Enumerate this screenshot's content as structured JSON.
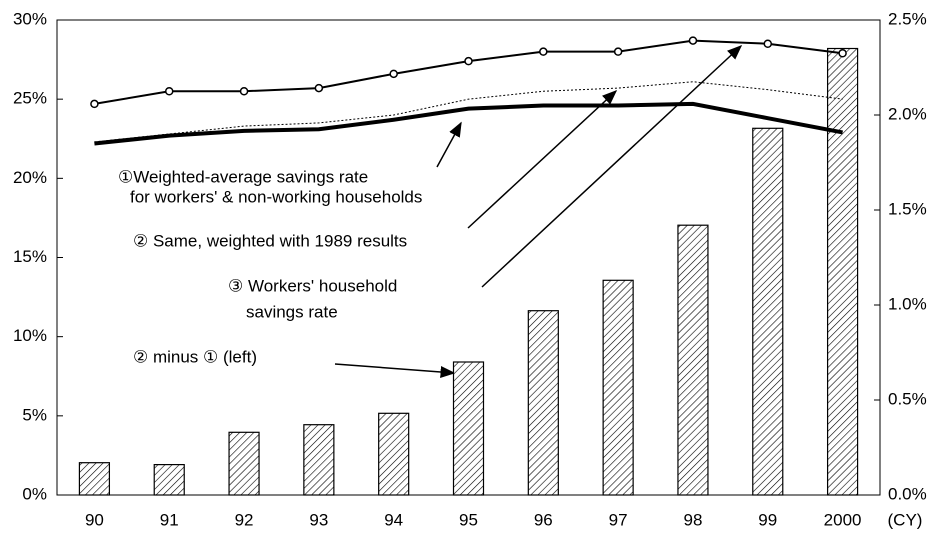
{
  "chart_data": {
    "type": "bar+line",
    "categories": [
      "90",
      "91",
      "92",
      "93",
      "94",
      "95",
      "96",
      "97",
      "98",
      "99",
      "2000"
    ],
    "x_unit_label": "(CY)",
    "ylim": [
      0,
      30
    ],
    "yticks": [
      {
        "value": 0,
        "label": "0%"
      },
      {
        "value": 5,
        "label": "5%"
      },
      {
        "value": 10,
        "label": "10%"
      },
      {
        "value": 15,
        "label": "15%"
      },
      {
        "value": 20,
        "label": "20%"
      },
      {
        "value": 25,
        "label": "25%"
      },
      {
        "value": 30,
        "label": "30%"
      }
    ],
    "y2lim": [
      0,
      2.5
    ],
    "y2ticks": [
      {
        "value": 0,
        "label": "0.0%"
      },
      {
        "value": 0.5,
        "label": "0.5%"
      },
      {
        "value": 1,
        "label": "1.0%"
      },
      {
        "value": 1.5,
        "label": "1.5%"
      },
      {
        "value": 2,
        "label": "2.0%"
      },
      {
        "value": 2.5,
        "label": "2.5%"
      }
    ],
    "series": [
      {
        "label": [
          "②  minus ① (left)"
        ],
        "type": "bar",
        "axis": "y2",
        "color": "#000000",
        "pattern": "hatched",
        "values": [
          0.17,
          0.16,
          0.33,
          0.37,
          0.43,
          0.7,
          0.97,
          1.13,
          1.42,
          1.93,
          2.35
        ]
      },
      {
        "label": [
          "①Weighted-average savings rate",
          "for workers' & non-working households"
        ],
        "type": "line",
        "style": "thick",
        "color": "#000000",
        "values": [
          22.2,
          22.7,
          23.0,
          23.1,
          23.7,
          24.4,
          24.6,
          24.6,
          24.7,
          23.8,
          22.9
        ]
      },
      {
        "label": [
          "② Same, weighted with 1989 results"
        ],
        "type": "line",
        "style": "dotted",
        "color": "#000000",
        "values": [
          22.3,
          22.8,
          23.3,
          23.5,
          24.0,
          25.0,
          25.5,
          25.7,
          26.1,
          25.6,
          25.0
        ]
      },
      {
        "label": [
          "③ Workers' household",
          "savings rate"
        ],
        "type": "line",
        "style": "markers",
        "color": "#000000",
        "values": [
          24.7,
          25.5,
          25.5,
          25.7,
          26.6,
          27.4,
          28.0,
          28.0,
          28.7,
          28.5,
          27.9
        ]
      }
    ]
  }
}
